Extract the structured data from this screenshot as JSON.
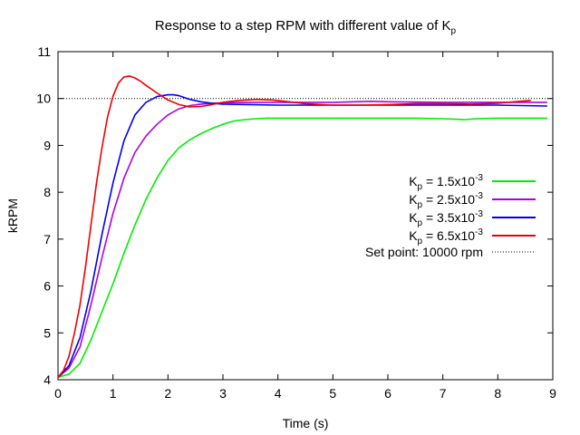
{
  "chart_data": {
    "type": "line",
    "title": {
      "text": "Response to a step RPM with different value of K",
      "subscript": "p"
    },
    "xlabel": "Time (s)",
    "ylabel": "kRPM",
    "xlim": [
      0,
      9
    ],
    "ylim": [
      4,
      11
    ],
    "xticks": [
      "0",
      "1",
      "2",
      "3",
      "4",
      "5",
      "6",
      "7",
      "8",
      "9"
    ],
    "yticks": [
      "4",
      "5",
      "6",
      "7",
      "8",
      "9",
      "10",
      "11"
    ],
    "grid": false,
    "legend_position": "center-right",
    "series": [
      {
        "legend": {
          "k": "K",
          "sub": "p",
          "mid": " = 1.5x10",
          "sup": "-3"
        },
        "color": "#00ee00",
        "x": [
          0,
          0.2,
          0.4,
          0.6,
          0.8,
          1.0,
          1.2,
          1.4,
          1.6,
          1.8,
          2.0,
          2.2,
          2.4,
          2.6,
          2.8,
          3.0,
          3.2,
          3.4,
          3.6,
          3.8,
          4.0,
          4.5,
          5.0,
          5.5,
          6.0,
          6.5,
          7.0,
          7.4,
          7.6,
          8.0,
          8.5,
          8.9
        ],
        "y": [
          4.05,
          4.12,
          4.35,
          4.85,
          5.45,
          6.05,
          6.7,
          7.3,
          7.85,
          8.3,
          8.68,
          8.95,
          9.12,
          9.25,
          9.36,
          9.45,
          9.52,
          9.55,
          9.57,
          9.58,
          9.58,
          9.58,
          9.58,
          9.58,
          9.58,
          9.58,
          9.57,
          9.55,
          9.57,
          9.58,
          9.58,
          9.58
        ]
      },
      {
        "legend": {
          "k": "K",
          "sub": "p",
          "mid": " = 2.5x10",
          "sup": "-3"
        },
        "color": "#b000e0",
        "x": [
          0,
          0.2,
          0.4,
          0.6,
          0.8,
          1.0,
          1.2,
          1.4,
          1.6,
          1.8,
          2.0,
          2.2,
          2.4,
          2.6,
          2.8,
          3.0,
          3.5,
          4.0,
          5.0,
          5.7,
          6.0,
          7.0,
          8.0,
          8.9
        ],
        "y": [
          4.05,
          4.25,
          4.7,
          5.6,
          6.6,
          7.55,
          8.3,
          8.85,
          9.2,
          9.45,
          9.65,
          9.78,
          9.85,
          9.88,
          9.9,
          9.91,
          9.92,
          9.92,
          9.92,
          9.94,
          9.93,
          9.92,
          9.92,
          9.92
        ]
      },
      {
        "legend": {
          "k": "K",
          "sub": "p",
          "mid": " = 3.5x10",
          "sup": "-3"
        },
        "color": "#0000ee",
        "x": [
          0,
          0.2,
          0.4,
          0.6,
          0.8,
          1.0,
          1.2,
          1.4,
          1.6,
          1.8,
          2.0,
          2.1,
          2.2,
          2.4,
          2.6,
          2.8,
          3.0,
          3.5,
          4.0,
          5.0,
          6.0,
          7.0,
          8.0,
          8.9
        ],
        "y": [
          4.05,
          4.3,
          4.9,
          5.9,
          7.1,
          8.2,
          9.1,
          9.65,
          9.92,
          10.04,
          10.08,
          10.08,
          10.06,
          9.98,
          9.93,
          9.9,
          9.88,
          9.87,
          9.86,
          9.86,
          9.86,
          9.86,
          9.86,
          9.84
        ]
      },
      {
        "legend": {
          "k": "K",
          "sub": "p",
          "mid": " = 6.5x10",
          "sup": "-3"
        },
        "color": "#ee0000",
        "x": [
          0,
          0.1,
          0.2,
          0.3,
          0.4,
          0.5,
          0.6,
          0.7,
          0.8,
          0.9,
          1.0,
          1.1,
          1.2,
          1.3,
          1.4,
          1.5,
          1.6,
          1.7,
          1.8,
          1.9,
          2.0,
          2.2,
          2.4,
          2.6,
          2.8,
          3.0,
          3.3,
          3.6,
          3.9,
          4.2,
          4.5,
          5.0,
          5.5,
          6.0,
          6.5,
          7.0,
          7.5,
          8.0,
          8.3,
          8.6
        ],
        "y": [
          4.05,
          4.2,
          4.5,
          5.0,
          5.6,
          6.4,
          7.3,
          8.2,
          8.95,
          9.6,
          10.05,
          10.33,
          10.46,
          10.48,
          10.44,
          10.37,
          10.28,
          10.2,
          10.12,
          10.04,
          9.97,
          9.87,
          9.82,
          9.83,
          9.87,
          9.92,
          9.96,
          9.98,
          9.97,
          9.93,
          9.89,
          9.86,
          9.86,
          9.87,
          9.89,
          9.89,
          9.88,
          9.9,
          9.93,
          9.96
        ]
      }
    ],
    "setpoint": {
      "label": "Set point: 10000 rpm",
      "y": 10,
      "style": "dotted"
    }
  }
}
